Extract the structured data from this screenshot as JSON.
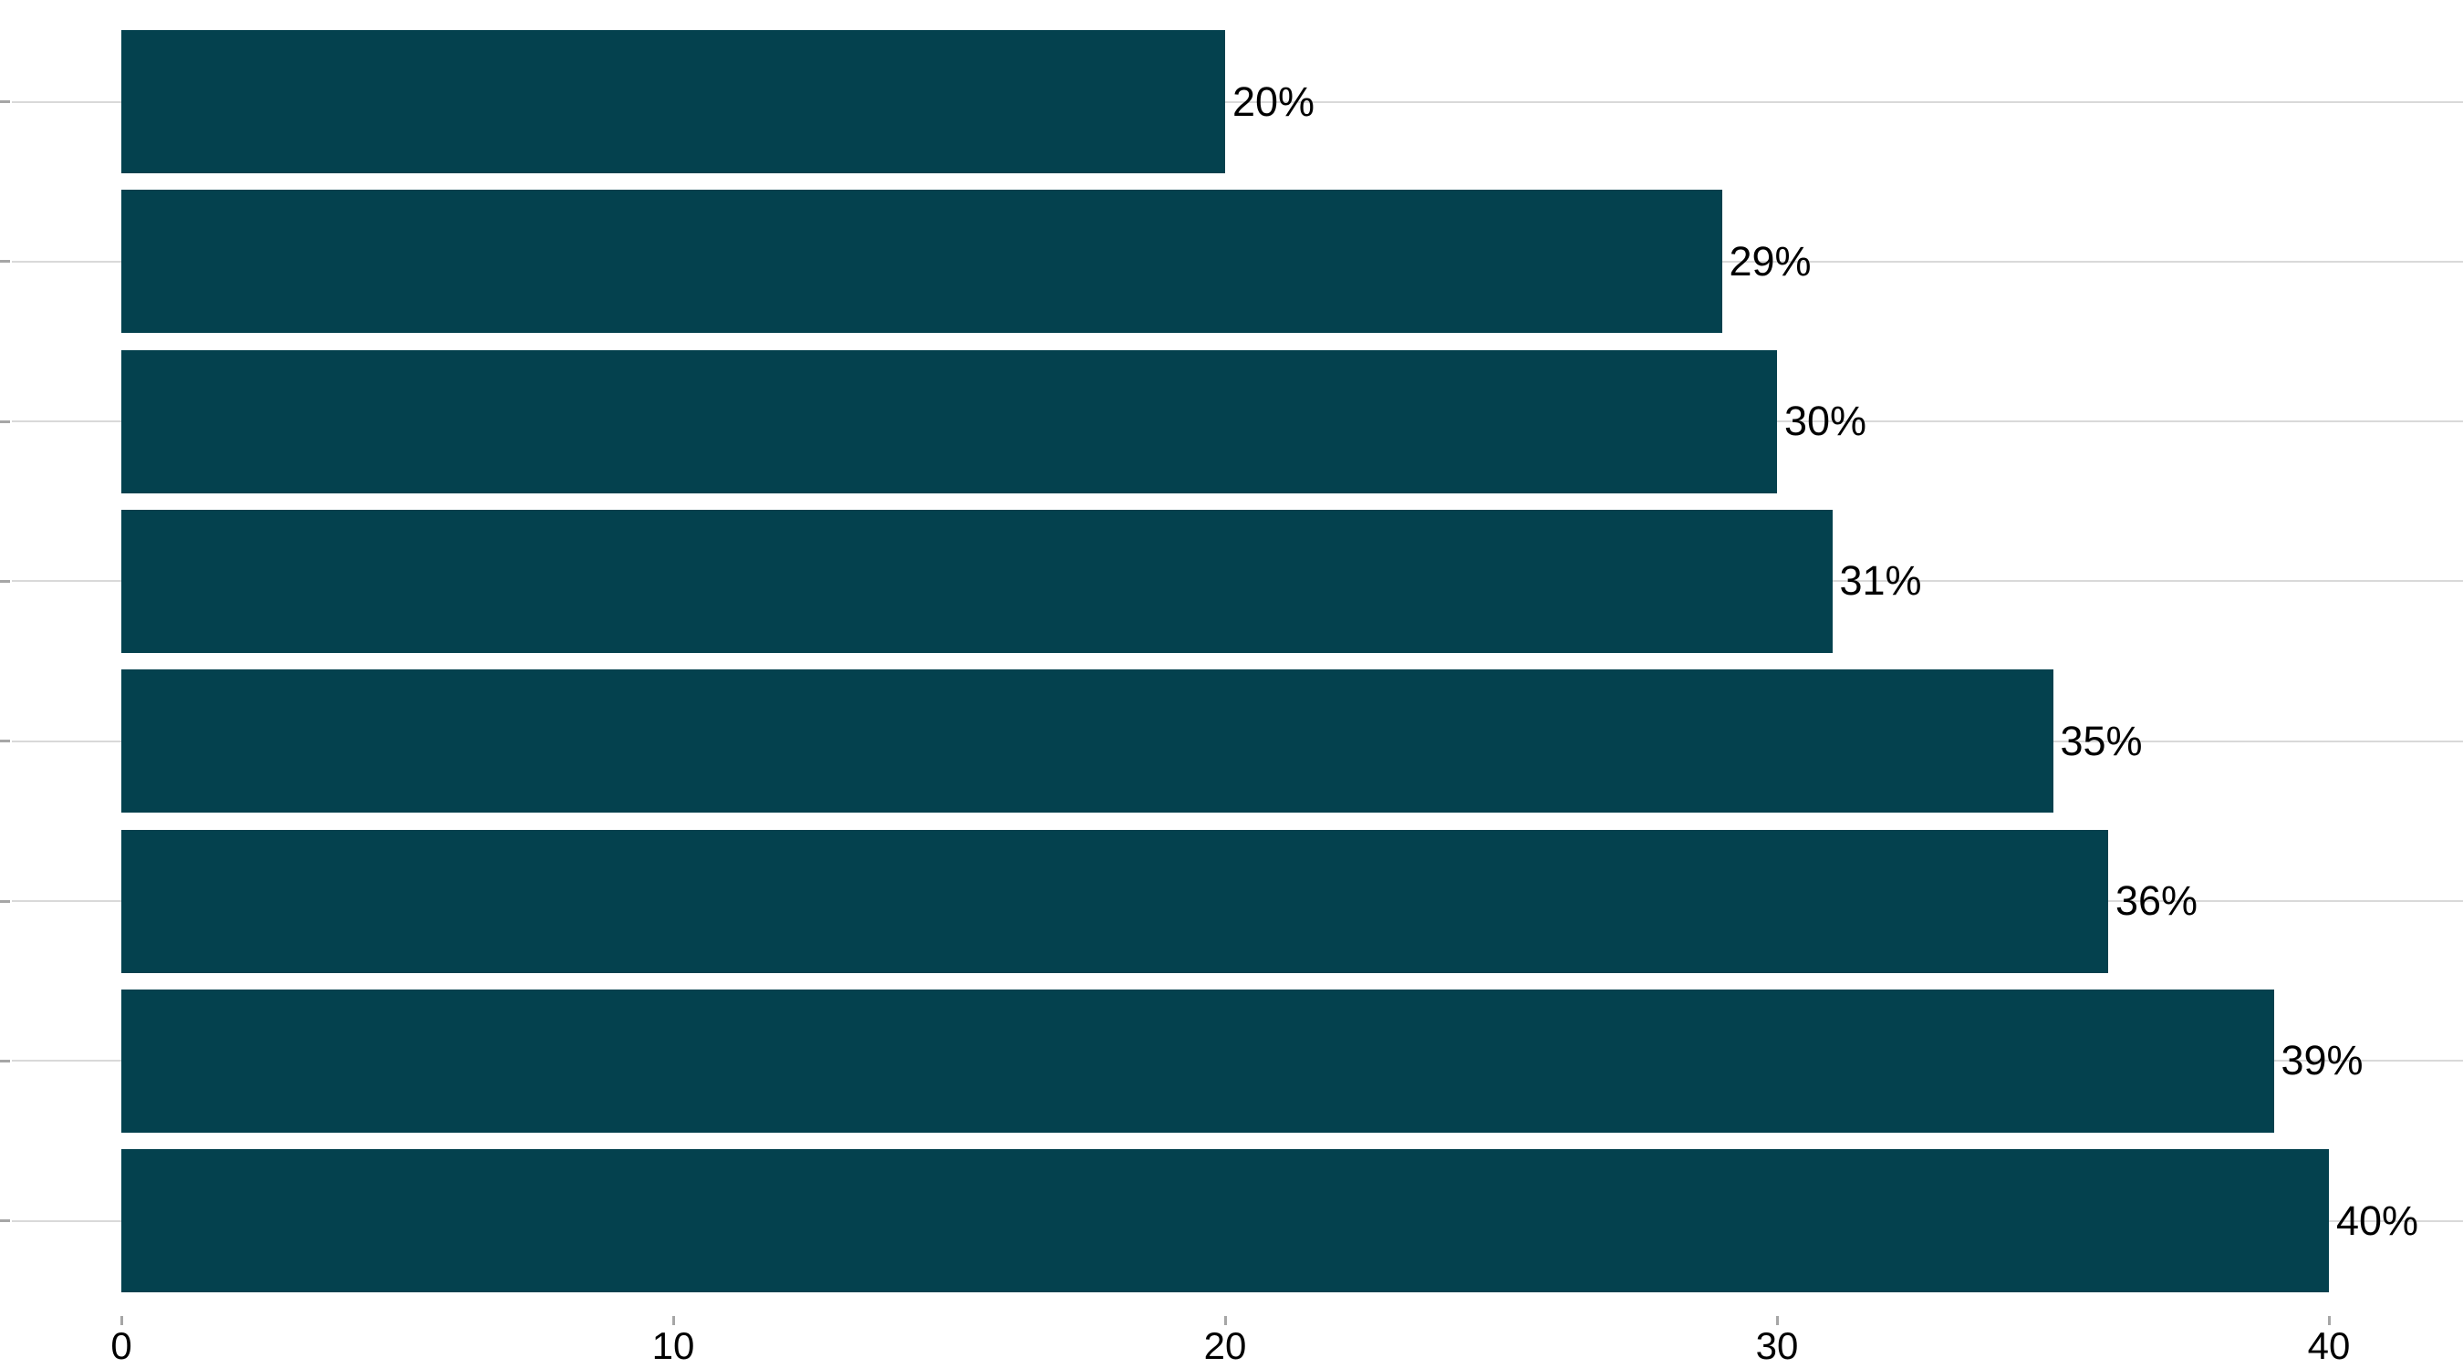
{
  "chart_data": {
    "type": "bar",
    "orientation": "horizontal",
    "title": "",
    "xlabel": "",
    "ylabel": "",
    "values": [
      20,
      29,
      30,
      31,
      35,
      36,
      39,
      40
    ],
    "bar_labels": [
      "20%",
      "29%",
      "30%",
      "31%",
      "35%",
      "36%",
      "39%",
      "40%"
    ],
    "x_ticks": [
      0,
      10,
      20,
      30,
      40
    ],
    "x_tick_labels": [
      "0",
      "10",
      "20",
      "30",
      "40"
    ],
    "xlim": [
      0,
      42.4
    ],
    "grid": "horizontal light-gray gridline at each bar row center, spanning full plot width",
    "legend_position": "none",
    "colors": {
      "bar": "#04414e",
      "gridline": "#d9d9d9",
      "tick": "#a6a6a6",
      "label": "#000000",
      "background": "#ffffff"
    }
  }
}
